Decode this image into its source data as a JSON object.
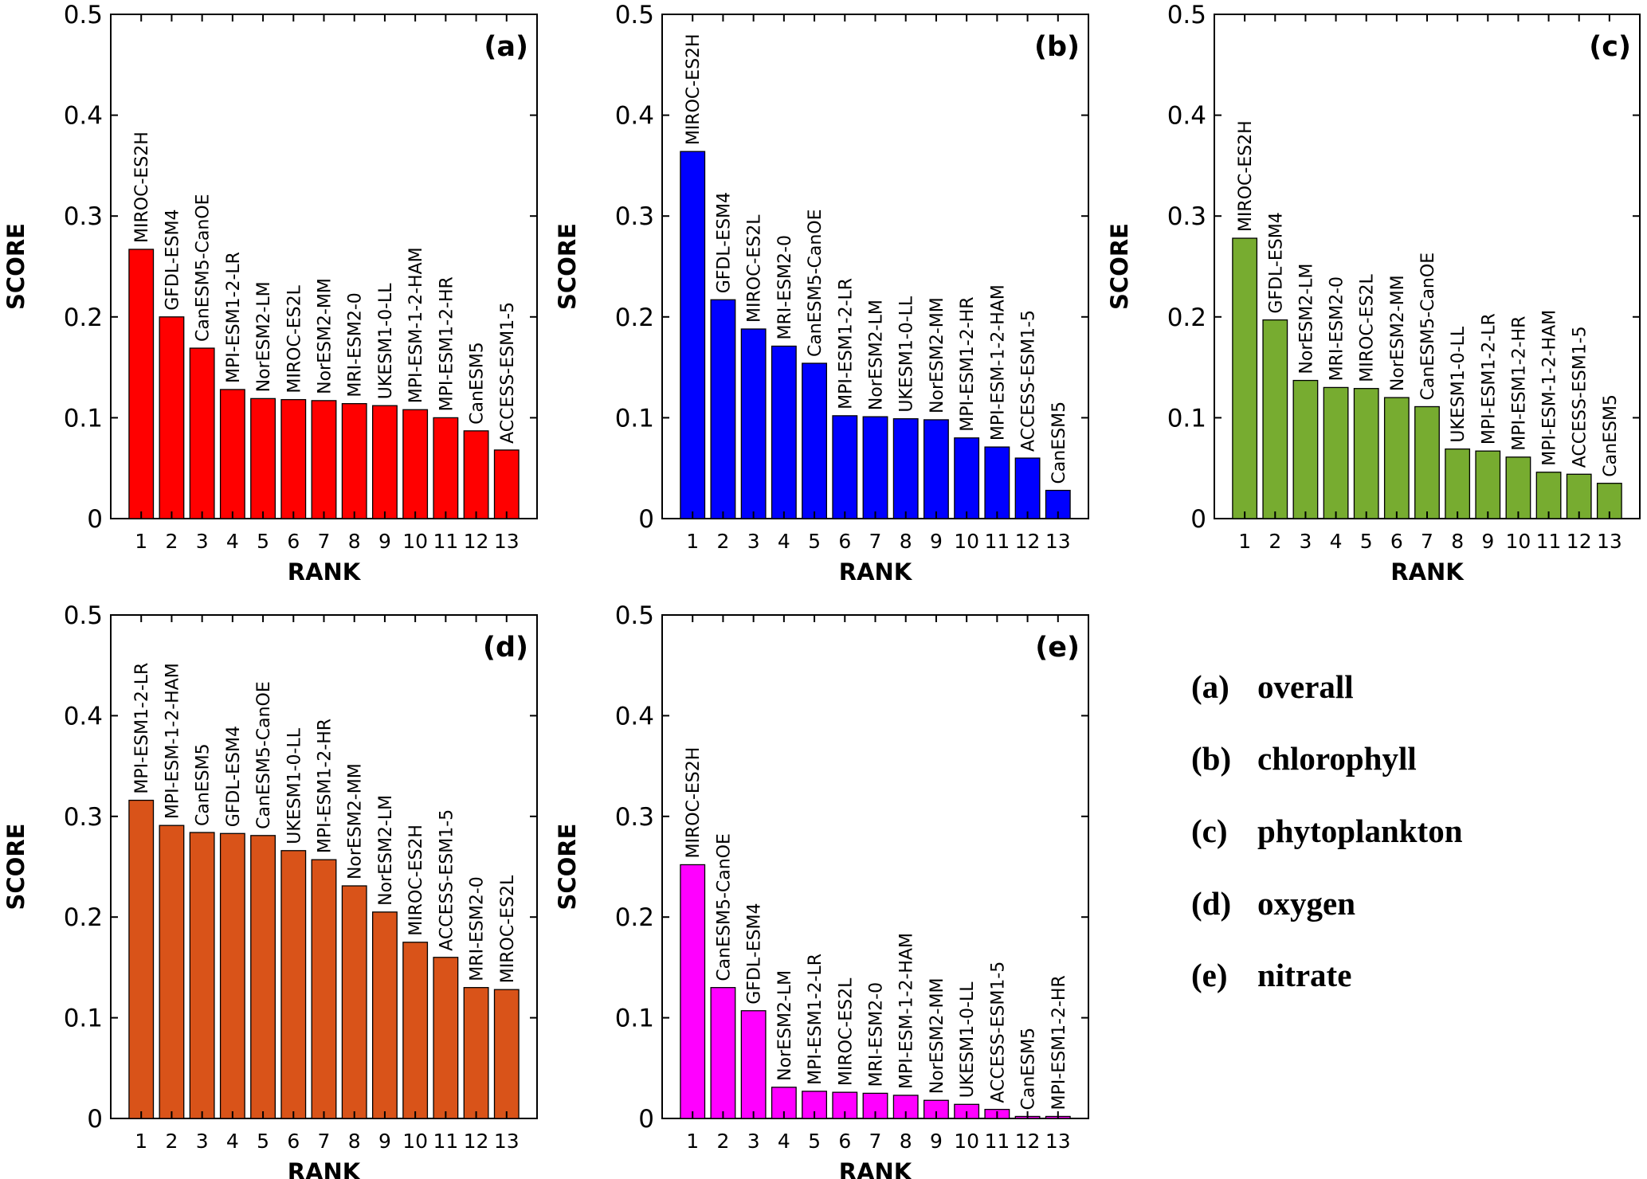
{
  "chart_data": [
    {
      "type": "bar",
      "panel_label": "(a)",
      "color": "#ff0000",
      "xlabel": "RANK",
      "ylabel": "SCORE",
      "ylim": [
        0,
        0.5
      ],
      "yticks": [
        "0",
        "0.1",
        "0.2",
        "0.3",
        "0.4",
        "0.5"
      ],
      "categories": [
        "1",
        "2",
        "3",
        "4",
        "5",
        "6",
        "7",
        "8",
        "9",
        "10",
        "11",
        "12",
        "13"
      ],
      "models": [
        "MIROC-ES2H",
        "GFDL-ESM4",
        "CanESM5-CanOE",
        "MPI-ESM1-2-LR",
        "NorESM2-LM",
        "MIROC-ES2L",
        "NorESM2-MM",
        "MRI-ESM2-0",
        "UKESM1-0-LL",
        "MPI-ESM-1-2-HAM",
        "MPI-ESM1-2-HR",
        "CanESM5",
        "ACCESS-ESM1-5"
      ],
      "values": [
        0.267,
        0.2,
        0.169,
        0.128,
        0.119,
        0.118,
        0.117,
        0.114,
        0.112,
        0.108,
        0.1,
        0.087,
        0.068
      ]
    },
    {
      "type": "bar",
      "panel_label": "(b)",
      "color": "#0000ff",
      "xlabel": "RANK",
      "ylabel": "SCORE",
      "ylim": [
        0,
        0.5
      ],
      "yticks": [
        "0",
        "0.1",
        "0.2",
        "0.3",
        "0.4",
        "0.5"
      ],
      "categories": [
        "1",
        "2",
        "3",
        "4",
        "5",
        "6",
        "7",
        "8",
        "9",
        "10",
        "11",
        "12",
        "13"
      ],
      "models": [
        "MIROC-ES2H",
        "GFDL-ESM4",
        "MIROC-ES2L",
        "MRI-ESM2-0",
        "CanESM5-CanOE",
        "MPI-ESM1-2-LR",
        "NorESM2-LM",
        "UKESM1-0-LL",
        "NorESM2-MM",
        "MPI-ESM1-2-HR",
        "MPI-ESM-1-2-HAM",
        "ACCESS-ESM1-5",
        "CanESM5"
      ],
      "values": [
        0.364,
        0.217,
        0.188,
        0.171,
        0.154,
        0.102,
        0.101,
        0.099,
        0.098,
        0.08,
        0.071,
        0.06,
        0.028
      ]
    },
    {
      "type": "bar",
      "panel_label": "(c)",
      "color": "#77ac30",
      "xlabel": "RANK",
      "ylabel": "SCORE",
      "ylim": [
        0,
        0.5
      ],
      "yticks": [
        "0",
        "0.1",
        "0.2",
        "0.3",
        "0.4",
        "0.5"
      ],
      "categories": [
        "1",
        "2",
        "3",
        "4",
        "5",
        "6",
        "7",
        "8",
        "9",
        "10",
        "11",
        "12",
        "13"
      ],
      "models": [
        "MIROC-ES2H",
        "GFDL-ESM4",
        "NorESM2-LM",
        "MRI-ESM2-0",
        "MIROC-ES2L",
        "NorESM2-MM",
        "CanESM5-CanOE",
        "UKESM1-0-LL",
        "MPI-ESM1-2-LR",
        "MPI-ESM1-2-HR",
        "MPI-ESM-1-2-HAM",
        "ACCESS-ESM1-5",
        "CanESM5"
      ],
      "values": [
        0.278,
        0.197,
        0.137,
        0.13,
        0.129,
        0.12,
        0.111,
        0.069,
        0.067,
        0.061,
        0.046,
        0.044,
        0.035
      ]
    },
    {
      "type": "bar",
      "panel_label": "(d)",
      "color": "#d95319",
      "xlabel": "RANK",
      "ylabel": "SCORE",
      "ylim": [
        0,
        0.5
      ],
      "yticks": [
        "0",
        "0.1",
        "0.2",
        "0.3",
        "0.4",
        "0.5"
      ],
      "categories": [
        "1",
        "2",
        "3",
        "4",
        "5",
        "6",
        "7",
        "8",
        "9",
        "10",
        "11",
        "12",
        "13"
      ],
      "models": [
        "MPI-ESM1-2-LR",
        "MPI-ESM-1-2-HAM",
        "CanESM5",
        "GFDL-ESM4",
        "CanESM5-CanOE",
        "UKESM1-0-LL",
        "MPI-ESM1-2-HR",
        "NorESM2-MM",
        "NorESM2-LM",
        "MIROC-ES2H",
        "ACCESS-ESM1-5",
        "MRI-ESM2-0",
        "MIROC-ES2L"
      ],
      "values": [
        0.316,
        0.291,
        0.284,
        0.283,
        0.281,
        0.266,
        0.257,
        0.231,
        0.205,
        0.175,
        0.16,
        0.13,
        0.128
      ]
    },
    {
      "type": "bar",
      "panel_label": "(e)",
      "color": "#ff00ff",
      "xlabel": "RANK",
      "ylabel": "SCORE",
      "ylim": [
        0,
        0.5
      ],
      "yticks": [
        "0",
        "0.1",
        "0.2",
        "0.3",
        "0.4",
        "0.5"
      ],
      "categories": [
        "1",
        "2",
        "3",
        "4",
        "5",
        "6",
        "7",
        "8",
        "9",
        "10",
        "11",
        "12",
        "13"
      ],
      "models": [
        "MIROC-ES2H",
        "CanESM5-CanOE",
        "GFDL-ESM4",
        "NorESM2-LM",
        "MPI-ESM1-2-LR",
        "MIROC-ES2L",
        "MRI-ESM2-0",
        "MPI-ESM-1-2-HAM",
        "NorESM2-MM",
        "UKESM1-0-LL",
        "ACCESS-ESM1-5",
        "CanESM5",
        "MPI-ESM1-2-HR"
      ],
      "values": [
        0.252,
        0.13,
        0.107,
        0.031,
        0.027,
        0.026,
        0.025,
        0.023,
        0.018,
        0.014,
        0.009,
        0.002,
        0.002
      ]
    }
  ],
  "legend": [
    {
      "key": "(a)",
      "label": "overall"
    },
    {
      "key": "(b)",
      "label": "chlorophyll"
    },
    {
      "key": "(c)",
      "label": "phytoplankton"
    },
    {
      "key": "(d)",
      "label": "oxygen"
    },
    {
      "key": "(e)",
      "label": "nitrate"
    }
  ]
}
